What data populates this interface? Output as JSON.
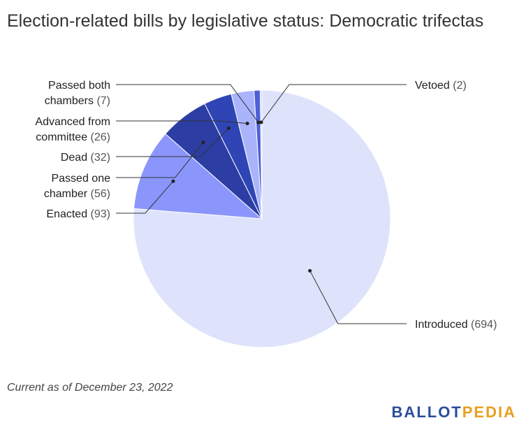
{
  "title": "Election-related bills by legislative status: Democratic trifectas",
  "footnote": "Current as of December 23, 2022",
  "brand": {
    "part1": "BALLOT",
    "part2": "PEDIA",
    "color1": "#2b4e9b",
    "color2": "#e8a020"
  },
  "chart_data": {
    "type": "pie",
    "title": "Election-related bills by legislative status: Democratic trifectas",
    "slices": [
      {
        "label": "Introduced",
        "value": 694,
        "color": "#dee3fb",
        "label_lines": [
          "Introduced"
        ]
      },
      {
        "label": "Enacted",
        "value": 93,
        "color": "#8a96fb",
        "label_lines": [
          "Enacted"
        ]
      },
      {
        "label": "Passed one chamber",
        "value": 56,
        "color": "#2c3ea4",
        "label_lines": [
          "Passed one",
          "chamber"
        ]
      },
      {
        "label": "Dead",
        "value": 32,
        "color": "#2f45b5",
        "label_lines": [
          "Dead"
        ]
      },
      {
        "label": "Advanced from committee",
        "value": 26,
        "color": "#aab4fb",
        "label_lines": [
          "Advanced from",
          "committee"
        ]
      },
      {
        "label": "Passed both chambers",
        "value": 7,
        "color": "#4e60d6",
        "label_lines": [
          "Passed both",
          "chambers"
        ]
      },
      {
        "label": "Vetoed",
        "value": 2,
        "color": "#c9d0fa",
        "label_lines": [
          "Vetoed"
        ]
      }
    ]
  }
}
